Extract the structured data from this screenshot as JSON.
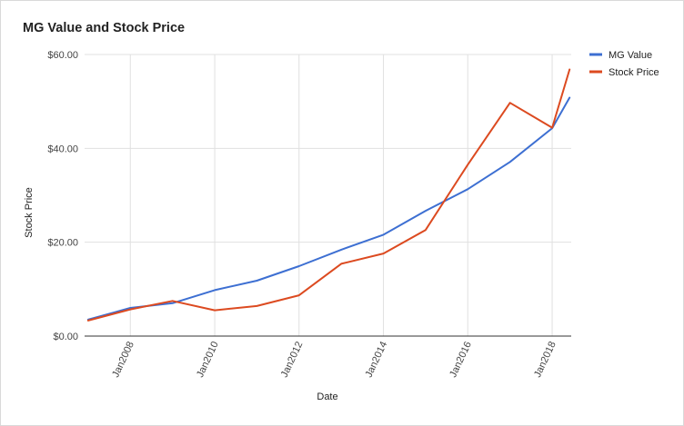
{
  "chart_data": {
    "type": "line",
    "title": "MG Value and Stock Price",
    "xlabel": "Date",
    "ylabel": "Stock Price",
    "ylim": [
      0,
      60
    ],
    "xlim": [
      "2006-12-01",
      "2018-06-15"
    ],
    "yticks": [
      "$0.00",
      "$20.00",
      "$40.00",
      "$60.00"
    ],
    "xticks": [
      {
        "label": "Jan2008",
        "date": "2008-01-01"
      },
      {
        "label": "Jan2010",
        "date": "2010-01-01"
      },
      {
        "label": "Jan2012",
        "date": "2012-01-01"
      },
      {
        "label": "Jan2014",
        "date": "2014-01-01"
      },
      {
        "label": "Jan2016",
        "date": "2016-01-01"
      },
      {
        "label": "Jan2018",
        "date": "2018-01-01"
      }
    ],
    "legend_position": "right",
    "grid": true,
    "series": [
      {
        "name": "MG Value",
        "color": "#3d6fd2",
        "points": [
          {
            "x": "2007-01-01",
            "y": 3.5
          },
          {
            "x": "2008-01-01",
            "y": 6.0
          },
          {
            "x": "2009-01-01",
            "y": 7.0
          },
          {
            "x": "2010-01-01",
            "y": 9.8
          },
          {
            "x": "2011-01-01",
            "y": 11.8
          },
          {
            "x": "2012-01-01",
            "y": 14.9
          },
          {
            "x": "2013-01-01",
            "y": 18.4
          },
          {
            "x": "2014-01-01",
            "y": 21.6
          },
          {
            "x": "2015-01-01",
            "y": 26.7
          },
          {
            "x": "2016-01-01",
            "y": 31.3
          },
          {
            "x": "2017-01-01",
            "y": 37.1
          },
          {
            "x": "2018-01-01",
            "y": 44.3
          },
          {
            "x": "2018-06-01",
            "y": 50.8
          }
        ]
      },
      {
        "name": "Stock Price",
        "color": "#dc4a20",
        "points": [
          {
            "x": "2007-01-01",
            "y": 3.3
          },
          {
            "x": "2008-01-01",
            "y": 5.7
          },
          {
            "x": "2009-01-01",
            "y": 7.5
          },
          {
            "x": "2010-01-01",
            "y": 5.5
          },
          {
            "x": "2011-01-01",
            "y": 6.4
          },
          {
            "x": "2012-01-01",
            "y": 8.7
          },
          {
            "x": "2013-01-01",
            "y": 15.4
          },
          {
            "x": "2014-01-01",
            "y": 17.6
          },
          {
            "x": "2015-01-01",
            "y": 22.6
          },
          {
            "x": "2016-01-01",
            "y": 36.5
          },
          {
            "x": "2017-01-01",
            "y": 49.7
          },
          {
            "x": "2018-01-01",
            "y": 44.4
          },
          {
            "x": "2018-06-01",
            "y": 56.8
          }
        ]
      }
    ]
  }
}
